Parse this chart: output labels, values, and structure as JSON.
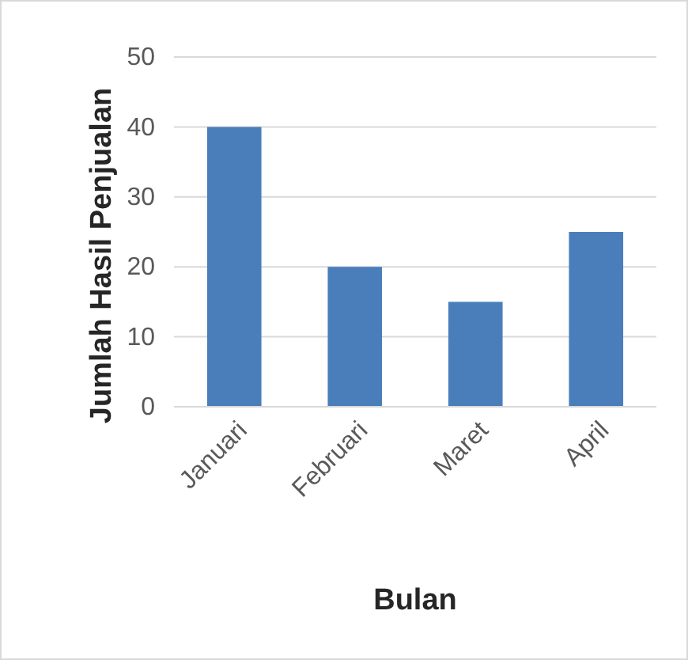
{
  "chart_data": {
    "type": "bar",
    "xlabel": "Bulan",
    "ylabel": "Jumlah Hasil Penjualan",
    "categories": [
      "Januari",
      "Februari",
      "Maret",
      "April"
    ],
    "values": [
      40,
      20,
      15,
      25
    ],
    "color": "#4a7ebb",
    "ylim": [
      0,
      50
    ],
    "yticks": [
      0,
      10,
      20,
      30,
      40,
      50
    ],
    "grid": "y"
  }
}
